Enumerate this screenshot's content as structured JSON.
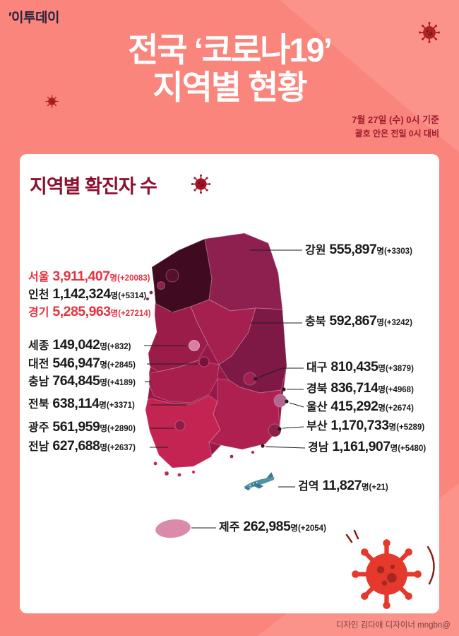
{
  "page": {
    "logo": "′이투데이",
    "title_line1": "전국 ‘코로나19’",
    "title_line2": "지역별 현황",
    "date_line1": "7월 27일 (수) 0시 기준",
    "date_line2": "괄호 안은 전일 0시 대비",
    "credit": "디자인 김다애 디자이너  mngbn@"
  },
  "card": {
    "heading": "지역별 확진자 수",
    "unit": "명"
  },
  "regions": [
    {
      "key": "seoul",
      "name": "서울",
      "value": "3,911,407",
      "delta": "+20083",
      "highlight": true
    },
    {
      "key": "incheon",
      "name": "인천",
      "value": "1,142,324",
      "delta": "+5314",
      "highlight": false
    },
    {
      "key": "gyeonggi",
      "name": "경기",
      "value": "5,285,963",
      "delta": "+27214",
      "highlight": true
    },
    {
      "key": "sejong",
      "name": "세종",
      "value": "149,042",
      "delta": "+832",
      "highlight": false
    },
    {
      "key": "daejeon",
      "name": "대전",
      "value": "546,947",
      "delta": "+2845",
      "highlight": false
    },
    {
      "key": "chungnam",
      "name": "충남",
      "value": "764,845",
      "delta": "+4189",
      "highlight": false
    },
    {
      "key": "jeonbuk",
      "name": "전북",
      "value": "638,114",
      "delta": "+3371",
      "highlight": false
    },
    {
      "key": "gwangju",
      "name": "광주",
      "value": "561,959",
      "delta": "+2890",
      "highlight": false
    },
    {
      "key": "jeonnam",
      "name": "전남",
      "value": "627,688",
      "delta": "+2637",
      "highlight": false
    },
    {
      "key": "gangwon",
      "name": "강원",
      "value": "555,897",
      "delta": "+3303",
      "highlight": false
    },
    {
      "key": "chungbuk",
      "name": "충북",
      "value": "592,867",
      "delta": "+3242",
      "highlight": false
    },
    {
      "key": "daegu",
      "name": "대구",
      "value": "810,435",
      "delta": "+3879",
      "highlight": false
    },
    {
      "key": "gyeongbuk",
      "name": "경북",
      "value": "836,714",
      "delta": "+4968",
      "highlight": false
    },
    {
      "key": "ulsan",
      "name": "울산",
      "value": "415,292",
      "delta": "+2674",
      "highlight": false
    },
    {
      "key": "busan",
      "name": "부산",
      "value": "1,170,733",
      "delta": "+5289",
      "highlight": false
    },
    {
      "key": "gyeongnam",
      "name": "경남",
      "value": "1,161,907",
      "delta": "+5480",
      "highlight": false
    },
    {
      "key": "quarantine",
      "name": "검역",
      "value": "11,827",
      "delta": "+21",
      "highlight": false
    },
    {
      "key": "jeju",
      "name": "제주",
      "value": "262,985",
      "delta": "+2054",
      "highlight": false
    }
  ],
  "map_fills": {
    "base": "#97194a",
    "gyeonggi": "#400b20",
    "seoul": "#5c0f2c",
    "incheon": "#8e2050",
    "gangwon": "#8e2050",
    "chungbuk": "#a51f4f",
    "chungnam": "#9b1c48",
    "sejong": "#d87ea4",
    "daejeon": "#77123a",
    "gyeongbuk": "#7e1845",
    "daegu": "#9e2152",
    "ulsan": "#b2688e",
    "jeonbuk": "#a81e4c",
    "jeonnam": "#c32451",
    "gwangju": "#8e1c46",
    "gyeongnam": "#ae2050",
    "busan": "#8e1f4a",
    "jeju": "#d98ba9"
  },
  "colors": {
    "bg": "#f9857c",
    "bg_light": "#fb938a",
    "card": "#ffffff",
    "title": "#ffffff",
    "date": "#a11b30",
    "heading": "#8d1030",
    "accent": "#e73240",
    "text": "#1b1b1b",
    "credit": "#7b4742",
    "virus_small": "#b12222",
    "virus_big": "#e4392c",
    "airplane": "#4f93a5"
  }
}
